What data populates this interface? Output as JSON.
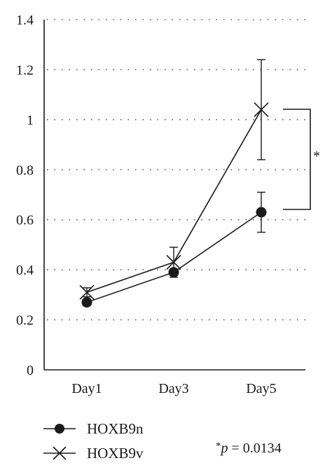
{
  "chart_data": {
    "type": "line",
    "categories": [
      "Day1",
      "Day3",
      "Day5"
    ],
    "ylim": [
      0,
      1.4
    ],
    "yticks": [
      "0",
      "0.2",
      "0.4",
      "0.6",
      "0.8",
      "1",
      "1.2",
      "1.4"
    ],
    "grid": true,
    "legend_position": "bottom-left",
    "series": [
      {
        "name": "HOXB9n",
        "marker": "circle",
        "values": [
          0.27,
          0.39,
          0.63
        ],
        "errors": [
          0.012,
          0.012,
          0.08
        ]
      },
      {
        "name": "HOXB9v",
        "marker": "x",
        "values": [
          0.31,
          0.43,
          1.04
        ],
        "errors": [
          0.018,
          0.06,
          0.2
        ]
      }
    ],
    "annotation": {
      "label": "*",
      "between": [
        "HOXB9n",
        "HOXB9v"
      ],
      "category": "Day5"
    },
    "footnote": {
      "star": "*",
      "p_symbol": "p",
      "value_text": " = 0.0134"
    }
  }
}
